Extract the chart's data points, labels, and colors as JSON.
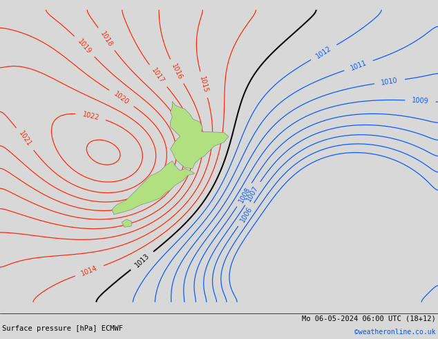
{
  "title_left": "Surface pressure [hPa] ECMWF",
  "title_right": "Mo 06-05-2024 06:00 UTC (18+12)",
  "copyright": "©weatheronline.co.uk",
  "bg_color": "#d8d8d8",
  "land_color": "#b0e080",
  "contour_color_red": "#ff2200",
  "contour_color_black": "#000000",
  "contour_color_blue": "#0055ff",
  "figsize": [
    6.34,
    4.9
  ],
  "dpi": 100,
  "font_size_labels": 7,
  "font_size_title": 7.5,
  "font_size_copyright": 7
}
